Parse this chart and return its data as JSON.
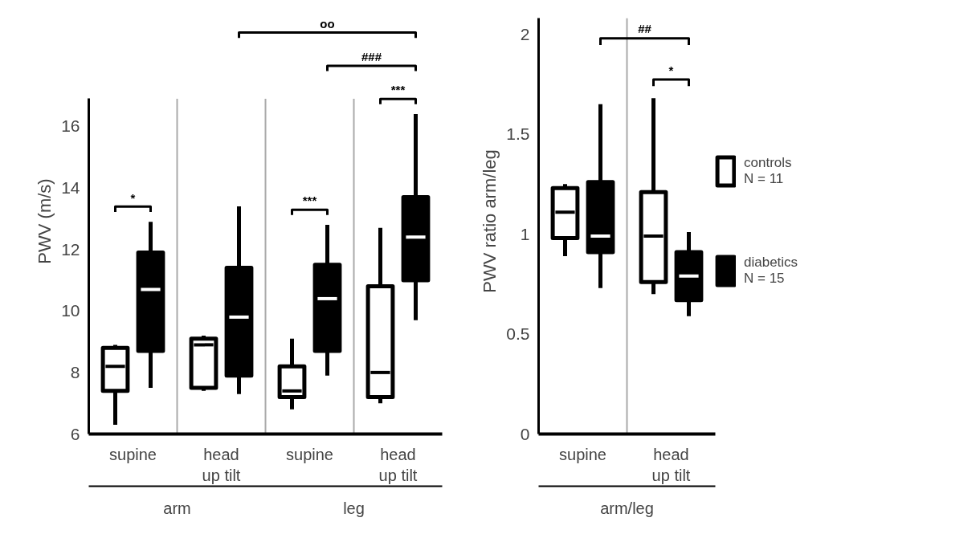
{
  "chart_data": [
    {
      "type": "box",
      "ylabel": "PWV (m/s)",
      "categories": [
        "supine",
        "head up tilt",
        "supine",
        "head up tilt"
      ],
      "ylim": [
        6,
        16.9
      ],
      "yticks": [
        6,
        8,
        10,
        12,
        14,
        16
      ],
      "annotations": [
        "arm",
        "leg",
        "*",
        "***",
        "***",
        "###",
        "oo"
      ],
      "series": [
        {
          "color": "#ffffff",
          "boxes": [
            {
              "low": 6.3,
              "q1": 7.4,
              "median": 8.2,
              "q3": 8.8,
              "high": 8.9
            },
            {
              "low": 7.4,
              "q1": 7.5,
              "median": 8.9,
              "q3": 9.1,
              "high": 9.2
            },
            {
              "low": 6.8,
              "q1": 7.2,
              "median": 7.4,
              "q3": 8.2,
              "high": 9.1
            },
            {
              "low": 7.0,
              "q1": 7.2,
              "median": 8.0,
              "q3": 10.8,
              "high": 12.7
            }
          ]
        },
        {
          "color": "#000000",
          "boxes": [
            {
              "low": 7.5,
              "q1": 8.7,
              "median": 10.7,
              "q3": 11.9,
              "high": 12.9
            },
            {
              "low": 7.3,
              "q1": 7.9,
              "median": 9.8,
              "q3": 11.4,
              "high": 13.4
            },
            {
              "low": 7.9,
              "q1": 8.7,
              "median": 10.4,
              "q3": 11.5,
              "high": 12.8
            },
            {
              "low": 9.7,
              "q1": 11.0,
              "median": 12.4,
              "q3": 13.7,
              "high": 16.4
            }
          ]
        }
      ]
    },
    {
      "type": "box",
      "ylabel": "PWV ratio arm/leg",
      "categories": [
        "supine",
        "head up tilt"
      ],
      "ylim": [
        0,
        2.08
      ],
      "yticks": [
        0,
        0.5,
        1,
        1.5,
        2
      ],
      "legend": "right",
      "annotations": [
        "arm/leg",
        "##",
        "*",
        "N = 11",
        "N = 15"
      ],
      "series": [
        {
          "name": "controls",
          "color": "#ffffff",
          "boxes": [
            {
              "low": 0.89,
              "q1": 0.98,
              "median": 1.11,
              "q3": 1.23,
              "high": 1.25
            },
            {
              "low": 0.7,
              "q1": 0.76,
              "median": 0.99,
              "q3": 1.21,
              "high": 1.68
            }
          ]
        },
        {
          "name": "diabetics",
          "color": "#000000",
          "boxes": [
            {
              "low": 0.73,
              "q1": 0.91,
              "median": 0.99,
              "q3": 1.26,
              "high": 1.65
            },
            {
              "low": 0.59,
              "q1": 0.67,
              "median": 0.79,
              "q3": 0.91,
              "high": 1.01
            }
          ]
        }
      ]
    }
  ]
}
